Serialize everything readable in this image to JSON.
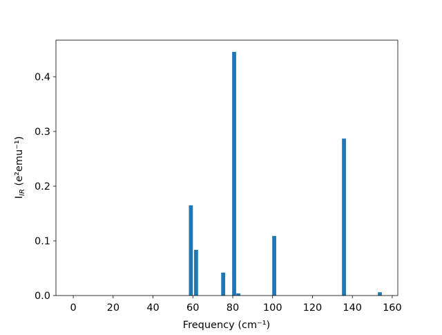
{
  "chart_data": {
    "type": "bar",
    "x": [
      59,
      61.6,
      75.2,
      80.7,
      82.8,
      100.8,
      135.8,
      153.8
    ],
    "values": [
      0.165,
      0.0835,
      0.042,
      0.4455,
      0.004,
      0.109,
      0.287,
      0.006
    ],
    "bar_width": 2,
    "color": "#1f77b4",
    "xlabel": "Frequency (cm⁻¹)",
    "ylabel": {
      "main": "I",
      "sub": "IR",
      "rest": " (e²emu⁻¹)"
    },
    "xlim": [
      -8.7,
      162.8
    ],
    "xticks": [
      0,
      20,
      40,
      60,
      80,
      100,
      120,
      140,
      160
    ],
    "ylim": [
      0,
      0.467
    ],
    "yticks": [
      0.0,
      0.1,
      0.2,
      0.3,
      0.4
    ]
  }
}
